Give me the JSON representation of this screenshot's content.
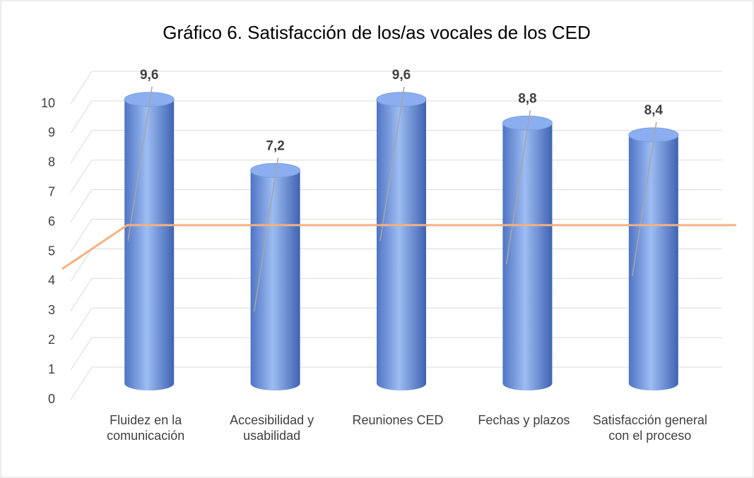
{
  "chart_data": {
    "type": "bar3d",
    "title": "Gráfico 6. Satisfacción de los/as vocales de los CED",
    "categories": [
      "Fluidez en la comunicación",
      "Accesibilidad y usabilidad",
      "Reuniones CED",
      "Fechas y plazos",
      "Satisfacción general con el proceso"
    ],
    "values": [
      9.6,
      7.2,
      9.6,
      8.8,
      8.4
    ],
    "value_labels": [
      "9,6",
      "7,2",
      "9,6",
      "8,8",
      "8,4"
    ],
    "color": "#6f96e0",
    "reference_line": {
      "value": 4.8,
      "color": "#f4b183"
    },
    "ylim": [
      0,
      11
    ],
    "yticks": [
      0,
      1,
      2,
      3,
      4,
      5,
      6,
      7,
      8,
      9,
      10
    ],
    "grid": true
  }
}
